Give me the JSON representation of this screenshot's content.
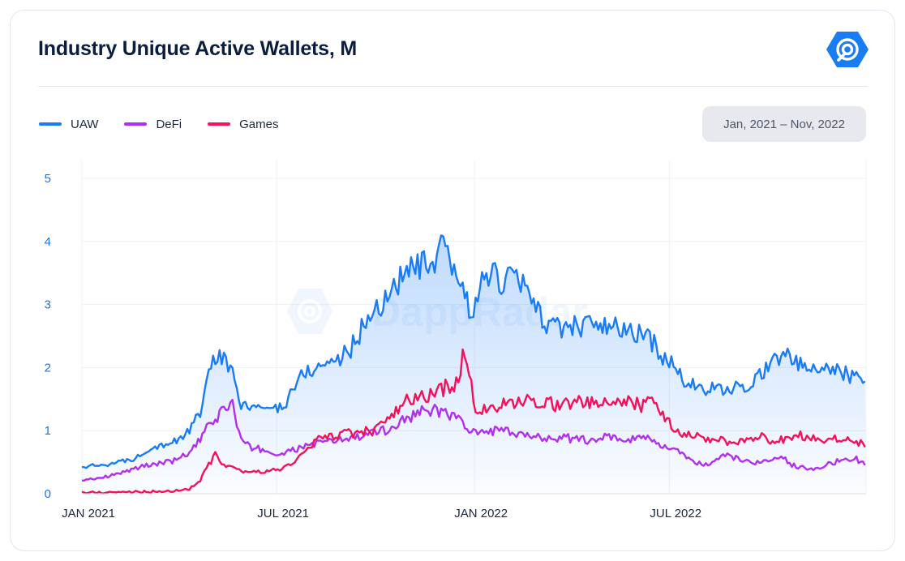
{
  "header": {
    "title": "Industry Unique Active Wallets, M",
    "logo_icon": "dappradar-logo-icon",
    "brand_color": "#1a7cf5"
  },
  "date_range": {
    "label": "Jan, 2021 – Nov, 2022"
  },
  "chart_data": {
    "type": "line",
    "title": "Industry Unique Active Wallets, M",
    "xlabel": "",
    "ylabel": "",
    "ylim": [
      0,
      5
    ],
    "y_ticks": [
      "0",
      "1",
      "2",
      "3",
      "4",
      "5"
    ],
    "x_ticks": [
      {
        "label": "JAN 2021",
        "t": 0
      },
      {
        "label": "JUL 2021",
        "t": 181
      },
      {
        "label": "JAN 2022",
        "t": 365
      },
      {
        "label": "JUL 2022",
        "t": 546
      }
    ],
    "t_range": [
      0,
      729
    ],
    "legend_position": "top-left",
    "grid": true,
    "watermark": "DappRadar",
    "series": [
      {
        "name": "UAW",
        "color": "#1a7cf5",
        "fill": true,
        "x": [
          0,
          10,
          20,
          30,
          40,
          50,
          60,
          70,
          80,
          90,
          100,
          110,
          115,
          120,
          130,
          140,
          145,
          150,
          155,
          160,
          165,
          170,
          175,
          180,
          185,
          190,
          200,
          210,
          220,
          230,
          240,
          250,
          260,
          270,
          280,
          290,
          300,
          310,
          320,
          325,
          330,
          335,
          340,
          345,
          350,
          355,
          360,
          365,
          370,
          375,
          380,
          385,
          390,
          395,
          400,
          410,
          420,
          430,
          440,
          450,
          460,
          470,
          480,
          490,
          500,
          510,
          520,
          530,
          540,
          545,
          550,
          560,
          570,
          580,
          590,
          600,
          610,
          620,
          630,
          640,
          650,
          660,
          670,
          680,
          690,
          700,
          710,
          720,
          729
        ],
        "values": [
          0.42,
          0.44,
          0.46,
          0.48,
          0.52,
          0.56,
          0.7,
          0.76,
          0.8,
          0.85,
          1.0,
          1.3,
          1.6,
          2.1,
          2.2,
          1.9,
          1.5,
          1.4,
          1.35,
          1.4,
          1.35,
          1.3,
          1.4,
          1.35,
          1.4,
          1.45,
          1.8,
          1.95,
          2.0,
          2.1,
          2.15,
          2.3,
          2.6,
          2.9,
          3.0,
          3.3,
          3.5,
          3.55,
          3.65,
          3.5,
          3.6,
          3.9,
          3.75,
          3.6,
          3.4,
          3.2,
          2.95,
          2.95,
          3.2,
          3.5,
          3.55,
          3.4,
          3.3,
          3.45,
          3.5,
          3.3,
          3.0,
          2.75,
          2.6,
          2.65,
          2.65,
          2.7,
          2.6,
          2.65,
          2.6,
          2.55,
          2.55,
          2.4,
          2.2,
          2.1,
          2.0,
          1.8,
          1.7,
          1.65,
          1.65,
          1.6,
          1.7,
          1.75,
          1.85,
          2.1,
          2.2,
          2.15,
          2.0,
          1.95,
          2.0,
          1.95,
          1.9,
          1.85,
          1.75
        ]
      },
      {
        "name": "DeFi",
        "color": "#b12ff0",
        "fill": false,
        "x": [
          0,
          10,
          20,
          30,
          40,
          50,
          60,
          70,
          80,
          90,
          100,
          110,
          115,
          120,
          130,
          140,
          145,
          150,
          155,
          160,
          165,
          170,
          175,
          180,
          190,
          200,
          210,
          220,
          230,
          240,
          250,
          260,
          270,
          280,
          290,
          300,
          310,
          320,
          330,
          340,
          345,
          350,
          355,
          360,
          365,
          370,
          380,
          390,
          400,
          410,
          420,
          430,
          440,
          450,
          460,
          470,
          480,
          490,
          500,
          510,
          520,
          530,
          540,
          550,
          560,
          570,
          580,
          590,
          600,
          610,
          620,
          630,
          640,
          650,
          660,
          670,
          680,
          690,
          700,
          710,
          720,
          729
        ],
        "values": [
          0.22,
          0.24,
          0.26,
          0.3,
          0.35,
          0.4,
          0.45,
          0.48,
          0.5,
          0.55,
          0.65,
          0.85,
          1.0,
          1.1,
          1.3,
          1.45,
          1.0,
          0.8,
          0.75,
          0.7,
          0.72,
          0.68,
          0.65,
          0.62,
          0.65,
          0.7,
          0.78,
          0.8,
          0.82,
          0.85,
          0.88,
          0.9,
          0.95,
          1.0,
          1.05,
          1.2,
          1.25,
          1.35,
          1.3,
          1.3,
          1.22,
          1.2,
          1.1,
          1.0,
          0.95,
          0.95,
          1.0,
          1.0,
          0.95,
          0.9,
          0.92,
          0.9,
          0.88,
          0.9,
          0.85,
          0.85,
          0.88,
          0.9,
          0.85,
          0.85,
          0.95,
          0.8,
          0.75,
          0.7,
          0.6,
          0.5,
          0.45,
          0.55,
          0.6,
          0.55,
          0.5,
          0.5,
          0.5,
          0.6,
          0.45,
          0.42,
          0.4,
          0.45,
          0.5,
          0.55,
          0.55,
          0.45
        ]
      },
      {
        "name": "Games",
        "color": "#f5105a",
        "fill": false,
        "x": [
          0,
          20,
          40,
          60,
          80,
          90,
          100,
          110,
          115,
          120,
          125,
          130,
          140,
          150,
          160,
          170,
          180,
          190,
          200,
          210,
          220,
          230,
          240,
          250,
          260,
          270,
          280,
          290,
          300,
          310,
          320,
          330,
          340,
          345,
          350,
          355,
          360,
          365,
          370,
          380,
          390,
          400,
          410,
          420,
          430,
          440,
          450,
          460,
          470,
          480,
          490,
          500,
          510,
          520,
          530,
          540,
          550,
          560,
          570,
          580,
          590,
          600,
          610,
          620,
          630,
          640,
          650,
          660,
          670,
          680,
          690,
          700,
          710,
          720,
          729
        ],
        "values": [
          0.02,
          0.02,
          0.03,
          0.03,
          0.04,
          0.05,
          0.08,
          0.2,
          0.4,
          0.5,
          0.65,
          0.45,
          0.4,
          0.35,
          0.35,
          0.35,
          0.38,
          0.42,
          0.55,
          0.7,
          0.88,
          0.9,
          0.95,
          0.95,
          0.98,
          1.0,
          1.1,
          1.25,
          1.45,
          1.5,
          1.55,
          1.6,
          1.7,
          1.75,
          1.8,
          2.2,
          1.9,
          1.4,
          1.3,
          1.35,
          1.4,
          1.4,
          1.45,
          1.5,
          1.45,
          1.4,
          1.45,
          1.45,
          1.45,
          1.4,
          1.45,
          1.45,
          1.45,
          1.4,
          1.5,
          1.3,
          1.0,
          0.95,
          0.9,
          0.88,
          0.85,
          0.82,
          0.8,
          0.85,
          0.95,
          0.85,
          0.85,
          0.9,
          0.92,
          0.9,
          0.85,
          0.9,
          0.85,
          0.8,
          0.78
        ]
      }
    ]
  }
}
